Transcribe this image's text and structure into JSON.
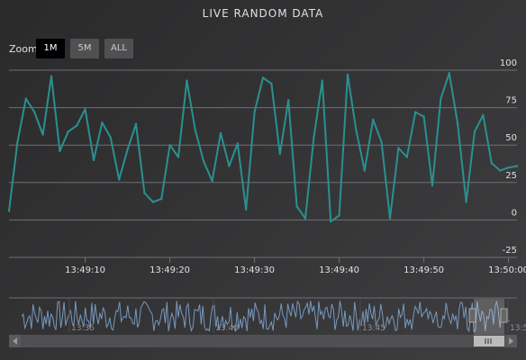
{
  "title": "LIVE RANDOM DATA",
  "range_selector": {
    "zoom_label": "Zoom",
    "buttons": [
      {
        "label": "1M",
        "active": true
      },
      {
        "label": "5M",
        "active": false
      },
      {
        "label": "ALL",
        "active": false
      }
    ]
  },
  "colors": {
    "series": "#2b908f",
    "navigator_series": "#7798bf",
    "grid": "#707073",
    "text": "#e0e0e3",
    "button": "#505053",
    "button_active": "#000003"
  },
  "chart_data": {
    "type": "line",
    "title": "LIVE RANDOM DATA",
    "x_axis_ticks": [
      "13:49:10",
      "13:49:20",
      "13:49:30",
      "13:49:40",
      "13:49:50",
      "13:50:00"
    ],
    "y_axis_ticks": [
      "-25",
      "0",
      "25",
      "50",
      "75",
      "100"
    ],
    "ylim": [
      -25,
      100
    ],
    "grid": true,
    "y_axis_side": "right",
    "series": [
      {
        "x": [
          "13:49:01",
          "13:49:02",
          "13:49:03",
          "13:49:04",
          "13:49:05",
          "13:49:06",
          "13:49:07",
          "13:49:08",
          "13:49:09",
          "13:49:10",
          "13:49:11",
          "13:49:12",
          "13:49:13",
          "13:49:14",
          "13:49:15",
          "13:49:16",
          "13:49:17",
          "13:49:18",
          "13:49:19",
          "13:49:20",
          "13:49:21",
          "13:49:22",
          "13:49:23",
          "13:49:24",
          "13:49:25",
          "13:49:26",
          "13:49:27",
          "13:49:28",
          "13:49:29",
          "13:49:30",
          "13:49:31",
          "13:49:32",
          "13:49:33",
          "13:49:34",
          "13:49:35",
          "13:49:36",
          "13:49:37",
          "13:49:38",
          "13:49:39",
          "13:49:40",
          "13:49:41",
          "13:49:42",
          "13:49:43",
          "13:49:44",
          "13:49:45",
          "13:49:46",
          "13:49:47",
          "13:49:48",
          "13:49:49",
          "13:49:50",
          "13:49:51",
          "13:49:52",
          "13:49:53",
          "13:49:54",
          "13:49:55",
          "13:49:56",
          "13:49:57",
          "13:49:58",
          "13:49:59",
          "13:50:00",
          "13:50:01"
        ],
        "values": [
          6,
          52,
          81,
          72,
          57,
          96,
          46,
          59,
          63,
          74,
          40,
          65,
          55,
          27,
          47,
          64,
          18,
          12,
          14,
          50,
          42,
          93,
          60,
          39,
          26,
          58,
          36,
          51,
          7,
          72,
          95,
          91,
          44,
          80,
          9,
          1,
          55,
          93,
          -1,
          3,
          97,
          60,
          33,
          67,
          52,
          1,
          48,
          42,
          72,
          69,
          23,
          81,
          98,
          64,
          12,
          59,
          70,
          38,
          33,
          35,
          36
        ]
      }
    ],
    "navigator": {
      "type": "line",
      "x_axis_ticks": [
        "13:35",
        "13:40",
        "13:45",
        "13:5"
      ]
    }
  }
}
